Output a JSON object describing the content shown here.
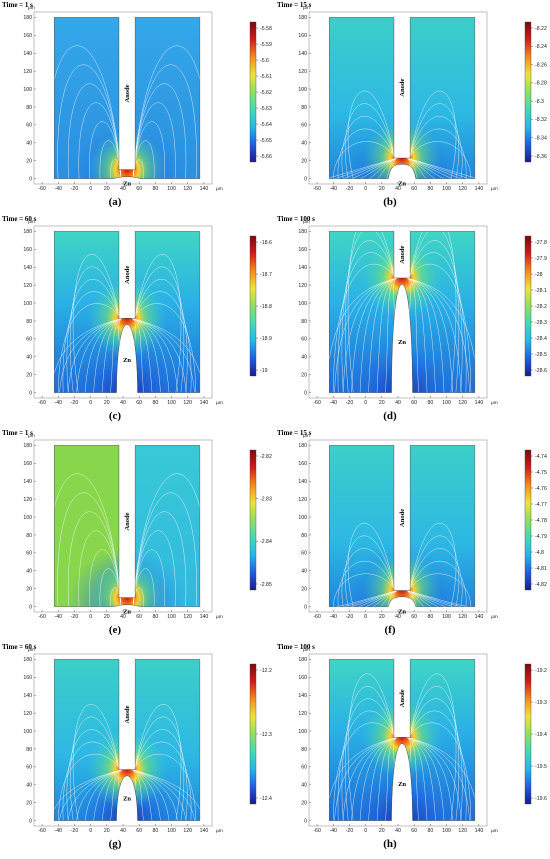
{
  "figure": {
    "panels": [
      {
        "id": "a",
        "label": "(a)",
        "time": "Time = 1 s",
        "anode_label": "Anode",
        "zn_label": "Zn",
        "zn_height": 3,
        "field_mode": "loops",
        "colorbar_ticks": [
          "-5.58",
          "-5.59",
          "-5.6",
          "-5.61",
          "-5.62",
          "-5.63",
          "-5.64",
          "-5.65",
          "-5.66"
        ]
      },
      {
        "id": "b",
        "label": "(b)",
        "time": "Time = 15 s",
        "anode_label": "Anode",
        "zn_label": "Zn",
        "zn_height": 16,
        "field_mode": "arches",
        "colorbar_ticks": [
          "-8.22",
          "-8.24",
          "-8.26",
          "-8.28",
          "-8.3",
          "-8.32",
          "-8.34",
          "-8.36"
        ]
      },
      {
        "id": "c",
        "label": "(c)",
        "time": "Time = 60 s",
        "anode_label": "Anode",
        "zn_label": "Zn",
        "zn_height": 76,
        "field_mode": "arches",
        "colorbar_ticks": [
          "-18.6",
          "-18.7",
          "-18.8",
          "-18.9",
          "-19"
        ]
      },
      {
        "id": "d",
        "label": "(d)",
        "time": "Time = 100 s",
        "anode_label": "Anode",
        "zn_label": "Zn",
        "zn_height": 121,
        "field_mode": "arches",
        "colorbar_ticks": [
          "-27.8",
          "-27.9",
          "-28",
          "-28.1",
          "-28.2",
          "-28.3",
          "-28.4",
          "-28.5",
          "-28.6"
        ]
      },
      {
        "id": "e",
        "label": "(e)",
        "time": "Time = 1 s",
        "anode_label": "Anode",
        "zn_label": "Zn",
        "zn_height": 3,
        "field_mode": "loops_split",
        "colorbar_ticks": [
          "-2.82",
          "-2.83",
          "-2.84",
          "-2.85"
        ]
      },
      {
        "id": "f",
        "label": "(f)",
        "time": "Time = 15 s",
        "anode_label": "Anode",
        "zn_label": "Zn",
        "zn_height": 11,
        "field_mode": "arches",
        "colorbar_ticks": [
          "-4.74",
          "-4.75",
          "-4.76",
          "-4.77",
          "-4.78",
          "-4.79",
          "-4.8",
          "-4.81",
          "-4.82"
        ]
      },
      {
        "id": "g",
        "label": "(g)",
        "time": "Time = 60 s",
        "anode_label": "Anode",
        "zn_label": "Zn",
        "zn_height": 50,
        "field_mode": "arches",
        "colorbar_ticks": [
          "-12.2",
          "-12.3",
          "-12.4"
        ]
      },
      {
        "id": "h",
        "label": "(h)",
        "time": "Time = 100 s",
        "anode_label": "Anode",
        "zn_label": "Zn",
        "zn_height": 86,
        "field_mode": "arches",
        "colorbar_ticks": [
          "-19.2",
          "-19.3",
          "-19.4",
          "-19.5",
          "-19.6"
        ]
      }
    ],
    "axes": {
      "x_ticks": [
        -60,
        -40,
        -20,
        0,
        20,
        40,
        60,
        80,
        100,
        120,
        140
      ],
      "y_ticks": [
        0,
        20,
        40,
        60,
        80,
        100,
        120,
        140,
        160,
        180
      ],
      "x_range": [
        -70,
        150
      ],
      "y_range": [
        -6,
        186
      ],
      "unit": "µm"
    },
    "geometry_data": {
      "domain_x": [
        -45,
        135
      ],
      "domain_y": [
        0,
        180
      ],
      "anode_x": [
        35,
        55
      ]
    },
    "colors": {
      "colormap": [
        "#1a1a8c",
        "#1f5fe0",
        "#26b6ea",
        "#46d8b8",
        "#8ee060",
        "#f0e23a",
        "#f58a1e",
        "#d01c1c",
        "#7a0a0a"
      ],
      "streamline": "#ffffff",
      "domain_edge": "#333333"
    }
  }
}
